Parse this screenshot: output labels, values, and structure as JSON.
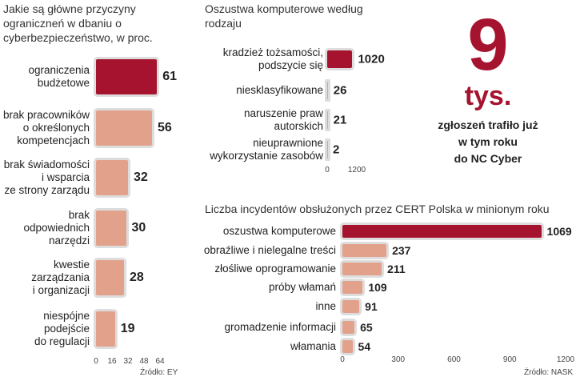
{
  "chart_data": [
    {
      "type": "bar",
      "orientation": "horizontal",
      "title": "Jakie są główne przyczyny ograniczneń w dbaniu o cyberbezpieczeństwo, w proc.",
      "categories": [
        "ograniczenia\nbudżetowe",
        "brak pracowników\no określonych\nkompetencjach",
        "brak świadomości\ni wsparcia\nze strony zarządu",
        "brak\nodpowiednich\nnarzędzi",
        "kwestie\nzarządzania\ni organizacji",
        "niespójne\npodejście\ndo regulacji"
      ],
      "values": [
        61,
        56,
        32,
        30,
        28,
        19
      ],
      "colors": [
        "#a5132f",
        "#e2a18b",
        "#e2a18b",
        "#e2a18b",
        "#e2a18b",
        "#e2a18b"
      ],
      "xlim": [
        0,
        64
      ],
      "xticks": [
        0,
        16,
        32,
        48,
        64
      ],
      "source": "Źródło: EY"
    },
    {
      "type": "bar",
      "orientation": "horizontal",
      "title": "Oszustwa komputerowe według rodzaju",
      "categories": [
        "kradzież tożsamości,\npodszycie się",
        "niesklasyfikowane",
        "naruszenie praw\nautorskich",
        "nieuprawnione\nwykorzystanie zasobów"
      ],
      "values": [
        1020,
        26,
        21,
        2
      ],
      "colors": [
        "#a5132f",
        "#e2a18b",
        "#e2a18b",
        "#e2a18b"
      ],
      "xlim": [
        0,
        1200
      ],
      "xticks": [
        0,
        1200
      ]
    },
    {
      "type": "bar",
      "orientation": "horizontal",
      "title": "Liczba incydentów obsłużonych przez CERT Polska w minionym roku",
      "categories": [
        "oszustwa komputerowe",
        "obraźliwe i nielegalne treści",
        "złośliwe oprogramowanie",
        "próby włamań",
        "inne",
        "gromadzenie informacji",
        "włamania"
      ],
      "values": [
        1069,
        237,
        211,
        109,
        91,
        65,
        54
      ],
      "colors": [
        "#a5132f",
        "#e2a18b",
        "#e2a18b",
        "#e2a18b",
        "#e2a18b",
        "#e2a18b",
        "#e2a18b"
      ],
      "xlim": [
        0,
        1200
      ],
      "xticks": [
        0,
        300,
        600,
        900,
        1200
      ],
      "source": "Źródło: NASK"
    }
  ],
  "callout": {
    "number": "9",
    "unit": "tys.",
    "text": "zgłoszeń trafiło już\nw tym roku\ndo NC Cyber"
  }
}
